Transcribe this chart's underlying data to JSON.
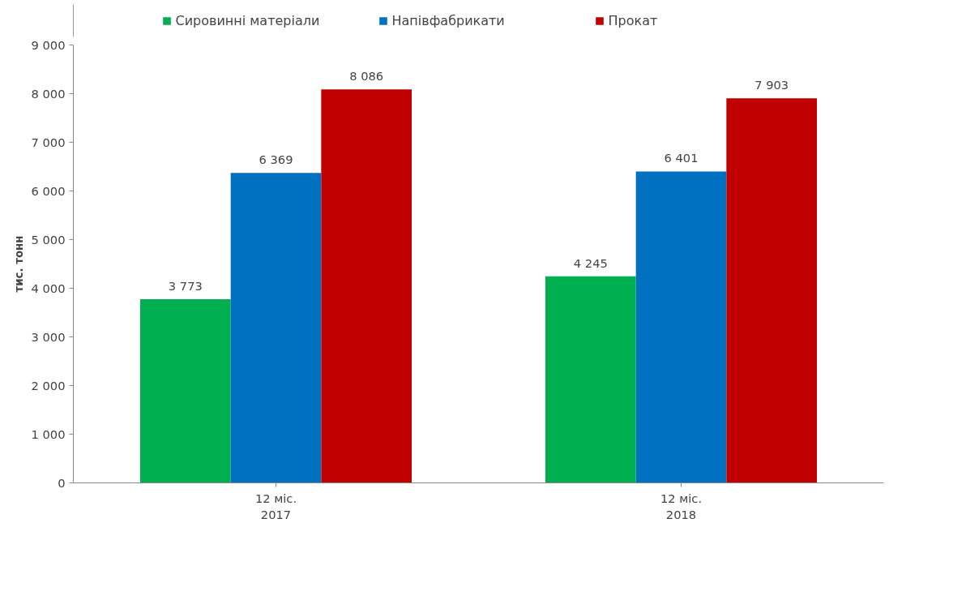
{
  "chart_data": {
    "type": "bar",
    "ylabel": "тис. тонн",
    "categories": [
      "12 міс.\n2017",
      "12 міс.\n2018"
    ],
    "series": [
      {
        "name": "Сировинні матеріали",
        "color": "#00b050",
        "values": [
          3773,
          4245
        ],
        "value_labels": [
          "3 773",
          "4 245"
        ]
      },
      {
        "name": "Напівфабрикати",
        "color": "#0070c0",
        "values": [
          6369,
          6401
        ],
        "value_labels": [
          "6 369",
          "6 401"
        ]
      },
      {
        "name": "Прокат",
        "color": "#c00000",
        "values": [
          8086,
          7903
        ],
        "value_labels": [
          "8 086",
          "7 903"
        ]
      }
    ],
    "ylim": [
      0,
      9000
    ],
    "yticks": [
      0,
      {
        "value": 1000,
        "label": "1 000"
      },
      {
        "value": 2000,
        "label": "2 000"
      },
      {
        "value": 3000,
        "label": "3 000"
      },
      {
        "value": 4000,
        "label": "4 000"
      },
      {
        "value": 5000,
        "label": "5 000"
      },
      {
        "value": 6000,
        "label": "6 000"
      },
      {
        "value": 7000,
        "label": "7 000"
      },
      {
        "value": 8000,
        "label": "8 000"
      },
      {
        "value": 9000,
        "label": "9 000"
      }
    ],
    "grid": false,
    "legend": "top"
  }
}
